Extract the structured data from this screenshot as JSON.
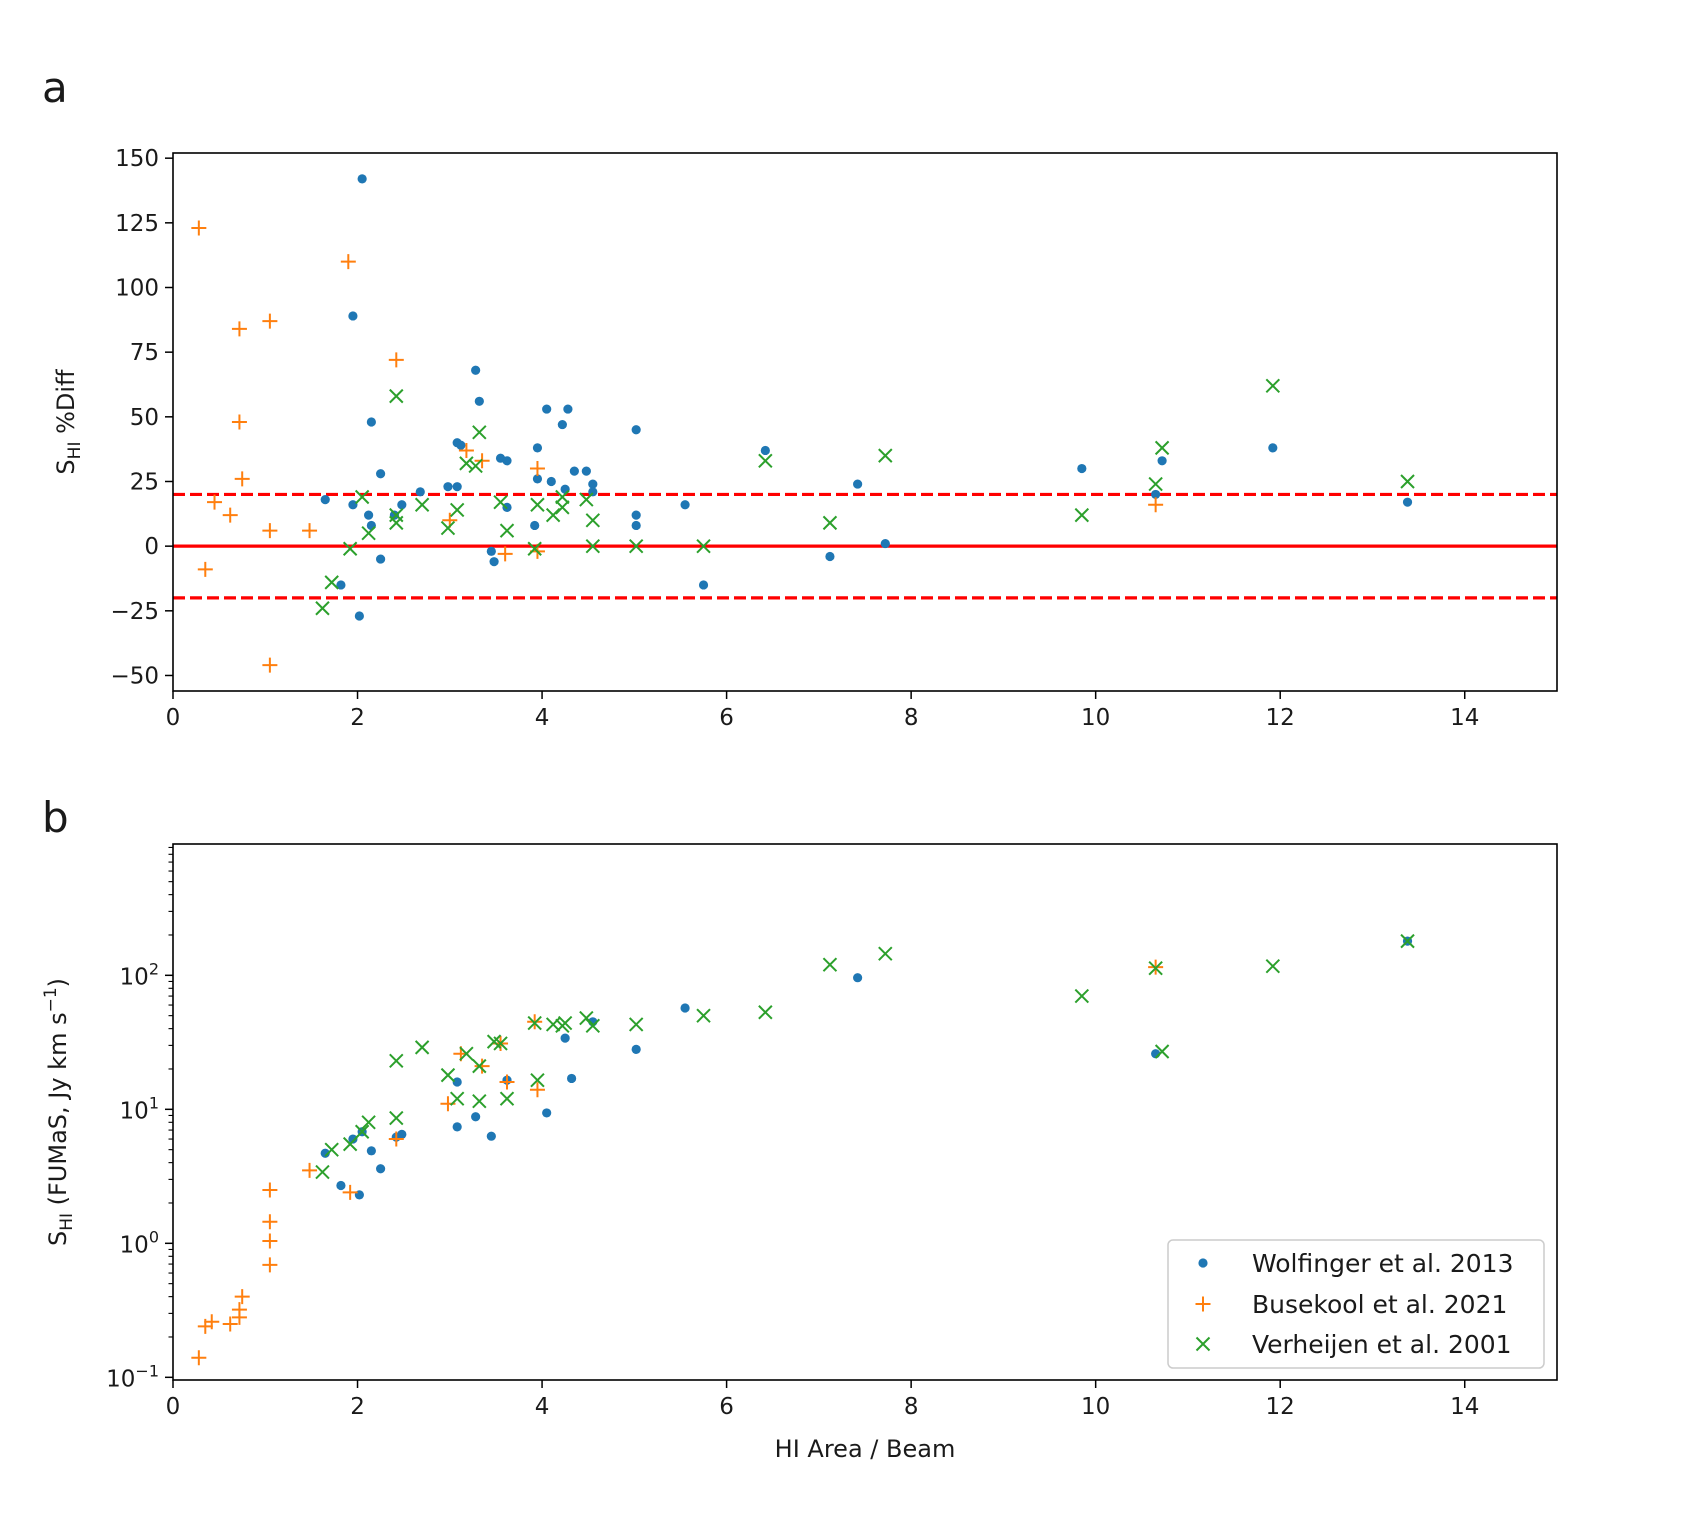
{
  "figure": {
    "panel_a_letter": "a",
    "panel_b_letter": "b"
  },
  "legend": {
    "wolfinger": "Wolfinger et al. 2013",
    "busekool": "Busekool et al. 2021",
    "verheijen": "Verheijen et al. 2001"
  },
  "colors": {
    "wolfinger": "#1f77b4",
    "busekool": "#ff7f0e",
    "verheijen": "#2ca02c",
    "reference": "#ff0000"
  },
  "chart_data": [
    {
      "panel": "a",
      "type": "scatter",
      "xlabel": "",
      "ylabel": "S_HI %Diff",
      "ylabel_main": "S",
      "ylabel_sub": "HI",
      "ylabel_rest": " %Diff",
      "xlim": [
        0,
        15
      ],
      "ylim": [
        -56,
        152
      ],
      "xticks": [
        0,
        2,
        4,
        6,
        8,
        10,
        12,
        14
      ],
      "xtick_labels": [
        "0",
        "2",
        "4",
        "6",
        "8",
        "10",
        "12",
        "14"
      ],
      "yticks": [
        -50,
        -25,
        0,
        25,
        50,
        75,
        100,
        125,
        150
      ],
      "ytick_labels": [
        "−50",
        "−25",
        "0",
        "25",
        "50",
        "75",
        "100",
        "125",
        "150"
      ],
      "reference_lines": [
        {
          "y": 0,
          "style": "solid"
        },
        {
          "y": 20,
          "style": "dashed"
        },
        {
          "y": -20,
          "style": "dashed"
        }
      ],
      "series": [
        {
          "name": "Wolfinger et al. 2013",
          "marker": "dot",
          "points": [
            [
              2.05,
              142
            ],
            [
              1.95,
              89
            ],
            [
              2.15,
              48
            ],
            [
              2.25,
              28
            ],
            [
              1.65,
              18
            ],
            [
              1.95,
              16
            ],
            [
              1.82,
              -15
            ],
            [
              2.02,
              -27
            ],
            [
              2.12,
              12
            ],
            [
              2.15,
              8
            ],
            [
              2.25,
              -5
            ],
            [
              2.4,
              12
            ],
            [
              2.48,
              16
            ],
            [
              2.68,
              21
            ],
            [
              2.98,
              23
            ],
            [
              3.08,
              23
            ],
            [
              3.08,
              40
            ],
            [
              3.12,
              39
            ],
            [
              3.28,
              68
            ],
            [
              3.32,
              56
            ],
            [
              3.45,
              -2
            ],
            [
              3.48,
              -6
            ],
            [
              3.55,
              34
            ],
            [
              3.62,
              15
            ],
            [
              3.62,
              33
            ],
            [
              3.92,
              8
            ],
            [
              3.95,
              38
            ],
            [
              3.95,
              26
            ],
            [
              4.05,
              53
            ],
            [
              4.1,
              25
            ],
            [
              4.22,
              47
            ],
            [
              4.25,
              22
            ],
            [
              4.28,
              53
            ],
            [
              4.35,
              29
            ],
            [
              4.48,
              29
            ],
            [
              4.55,
              24
            ],
            [
              4.55,
              21
            ],
            [
              5.02,
              45
            ],
            [
              5.02,
              8
            ],
            [
              5.02,
              12
            ],
            [
              5.55,
              16
            ],
            [
              5.75,
              -15
            ],
            [
              6.42,
              37
            ],
            [
              7.12,
              -4
            ],
            [
              7.42,
              24
            ],
            [
              7.72,
              1
            ],
            [
              9.85,
              30
            ],
            [
              10.65,
              20
            ],
            [
              10.72,
              33
            ],
            [
              11.92,
              38
            ],
            [
              13.38,
              17
            ]
          ]
        },
        {
          "name": "Busekool et al. 2021",
          "marker": "plus",
          "points": [
            [
              0.28,
              123
            ],
            [
              0.35,
              -9
            ],
            [
              0.45,
              17
            ],
            [
              0.62,
              12
            ],
            [
              0.72,
              84
            ],
            [
              0.72,
              48
            ],
            [
              0.75,
              26
            ],
            [
              1.05,
              87
            ],
            [
              1.05,
              6
            ],
            [
              1.05,
              -46
            ],
            [
              1.48,
              6
            ],
            [
              1.9,
              110
            ],
            [
              2.42,
              72
            ],
            [
              3.0,
              10
            ],
            [
              3.18,
              37
            ],
            [
              3.35,
              33
            ],
            [
              3.95,
              30
            ],
            [
              3.95,
              -2
            ],
            [
              3.6,
              -3
            ],
            [
              10.65,
              16
            ]
          ]
        },
        {
          "name": "Verheijen et al. 2001",
          "marker": "x",
          "points": [
            [
              1.62,
              -24
            ],
            [
              1.72,
              -14
            ],
            [
              1.92,
              -1
            ],
            [
              2.05,
              19
            ],
            [
              2.12,
              5
            ],
            [
              2.42,
              58
            ],
            [
              2.42,
              12
            ],
            [
              2.42,
              9
            ],
            [
              2.7,
              16
            ],
            [
              2.98,
              7
            ],
            [
              3.08,
              14
            ],
            [
              3.18,
              32
            ],
            [
              3.28,
              31
            ],
            [
              3.32,
              44
            ],
            [
              3.55,
              17
            ],
            [
              3.62,
              6
            ],
            [
              3.92,
              -1
            ],
            [
              3.95,
              16
            ],
            [
              4.12,
              12
            ],
            [
              4.22,
              15
            ],
            [
              4.22,
              19
            ],
            [
              4.48,
              18
            ],
            [
              4.55,
              10
            ],
            [
              4.55,
              0
            ],
            [
              5.02,
              0
            ],
            [
              5.75,
              0
            ],
            [
              6.42,
              33
            ],
            [
              7.12,
              9
            ],
            [
              7.72,
              35
            ],
            [
              9.85,
              12
            ],
            [
              10.65,
              24
            ],
            [
              10.72,
              38
            ],
            [
              11.92,
              62
            ],
            [
              13.38,
              25
            ]
          ]
        }
      ]
    },
    {
      "panel": "b",
      "type": "scatter",
      "yscale": "log",
      "xlabel": "HI Area / Beam",
      "ylabel": "S_HI (FUMaS, Jy km s^-1)",
      "ylabel_main": "S",
      "ylabel_sub": "HI",
      "ylabel_rest": " (FUMaS, Jy km s",
      "ylabel_sup": "−1",
      "ylabel_end": ")",
      "xlim": [
        0,
        15
      ],
      "log10_ylim": [
        -1.02,
        2.98
      ],
      "xticks": [
        0,
        2,
        4,
        6,
        8,
        10,
        12,
        14
      ],
      "xtick_labels": [
        "0",
        "2",
        "4",
        "6",
        "8",
        "10",
        "12",
        "14"
      ],
      "yticks_log10": [
        -1,
        0,
        1,
        2
      ],
      "ytick_base": "10",
      "ytick_exponents": [
        "−1",
        "0",
        "1",
        "2"
      ],
      "legend_position": "lower-right",
      "series": [
        {
          "name": "Wolfinger et al. 2013",
          "marker": "dot",
          "points": [
            [
              1.65,
              4.7
            ],
            [
              1.82,
              2.7
            ],
            [
              1.95,
              6.0
            ],
            [
              2.02,
              2.3
            ],
            [
              2.05,
              6.8
            ],
            [
              2.15,
              4.9
            ],
            [
              2.25,
              3.6
            ],
            [
              2.42,
              6.2
            ],
            [
              2.48,
              6.5
            ],
            [
              3.08,
              7.4
            ],
            [
              3.08,
              16
            ],
            [
              3.28,
              8.8
            ],
            [
              3.45,
              6.3
            ],
            [
              3.62,
              16.5
            ],
            [
              4.05,
              9.4
            ],
            [
              4.25,
              34
            ],
            [
              4.32,
              17
            ],
            [
              4.55,
              45
            ],
            [
              5.02,
              28
            ],
            [
              5.55,
              57
            ],
            [
              7.42,
              96
            ],
            [
              10.65,
              26
            ],
            [
              13.38,
              180
            ]
          ]
        },
        {
          "name": "Busekool et al. 2021",
          "marker": "plus",
          "points": [
            [
              0.28,
              0.14
            ],
            [
              0.35,
              0.24
            ],
            [
              0.42,
              0.26
            ],
            [
              0.62,
              0.25
            ],
            [
              0.72,
              0.28
            ],
            [
              0.72,
              0.32
            ],
            [
              0.75,
              0.4
            ],
            [
              1.05,
              0.69
            ],
            [
              1.05,
              1.04
            ],
            [
              1.05,
              1.45
            ],
            [
              1.05,
              2.5
            ],
            [
              1.48,
              3.5
            ],
            [
              1.92,
              2.4
            ],
            [
              2.42,
              6.0
            ],
            [
              2.98,
              11
            ],
            [
              3.12,
              26
            ],
            [
              3.35,
              21
            ],
            [
              3.55,
              31
            ],
            [
              3.62,
              16
            ],
            [
              3.95,
              14
            ],
            [
              3.92,
              45
            ],
            [
              10.65,
              115
            ]
          ]
        },
        {
          "name": "Verheijen et al. 2001",
          "marker": "x",
          "points": [
            [
              1.62,
              3.4
            ],
            [
              1.72,
              5.0
            ],
            [
              1.92,
              5.5
            ],
            [
              2.05,
              6.8
            ],
            [
              2.12,
              8.0
            ],
            [
              2.42,
              8.6
            ],
            [
              2.42,
              23
            ],
            [
              2.7,
              29
            ],
            [
              2.98,
              18
            ],
            [
              3.08,
              12
            ],
            [
              3.18,
              26
            ],
            [
              3.32,
              21
            ],
            [
              3.32,
              11.5
            ],
            [
              3.48,
              32
            ],
            [
              3.55,
              31
            ],
            [
              3.62,
              12
            ],
            [
              3.95,
              16.5
            ],
            [
              3.92,
              44
            ],
            [
              4.12,
              43
            ],
            [
              4.22,
              42
            ],
            [
              4.25,
              44
            ],
            [
              4.48,
              48
            ],
            [
              4.55,
              42
            ],
            [
              5.02,
              43
            ],
            [
              5.75,
              50
            ],
            [
              6.42,
              53
            ],
            [
              7.12,
              120
            ],
            [
              7.72,
              145
            ],
            [
              9.85,
              70
            ],
            [
              10.65,
              113
            ],
            [
              10.72,
              27
            ],
            [
              11.92,
              117
            ],
            [
              13.38,
              180
            ]
          ]
        }
      ]
    }
  ]
}
